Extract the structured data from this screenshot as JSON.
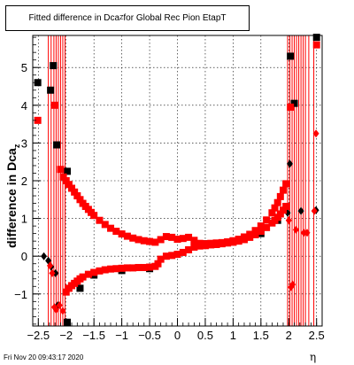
{
  "title_main": "Fitted difference in Dca",
  "title_sub": "Z",
  "title_rest": " for Global Rec Pion EtapT",
  "ylabel_main": "difference in Dca",
  "ylabel_sub": "z",
  "xlabel": "η",
  "footer": "Fri Nov 20 09:43:17 2020",
  "colors": {
    "red": "#ff0000",
    "black": "#000000",
    "grid": "#000000"
  },
  "chart_data": {
    "type": "scatter",
    "xlim": [
      -2.6,
      2.6
    ],
    "ylim": [
      -1.85,
      5.85
    ],
    "xticks": [
      -2.5,
      -2,
      -1.5,
      -1,
      -0.5,
      0,
      0.5,
      1,
      1.5,
      2,
      2.5
    ],
    "xtick_labels": [
      "−2.5",
      "−2",
      "−1.5",
      "−1",
      "−0.5",
      "0",
      "0.5",
      "1",
      "1.5",
      "2",
      "2.5"
    ],
    "yticks": [
      -1,
      0,
      1,
      2,
      3,
      4,
      5
    ],
    "ytick_labels": [
      "−1",
      "0",
      "1",
      "2",
      "3",
      "4",
      "5"
    ],
    "grid": true,
    "red_vlines_x": [
      -2.32,
      -2.27,
      -2.22,
      -2.18,
      -2.14,
      -2.1,
      -2.06,
      -2.02,
      1.98,
      2.02,
      2.06,
      2.1,
      2.14,
      2.18,
      2.22,
      2.26,
      2.3,
      2.36,
      2.45
    ],
    "series": [
      {
        "marker": "square",
        "color": "#000000",
        "points": [
          [
            -2.51,
            4.6
          ],
          [
            -2.28,
            4.4
          ],
          [
            -2.23,
            5.05
          ],
          [
            -2.17,
            2.95
          ],
          [
            -1.98,
            2.25
          ],
          [
            -1.98,
            -1.75
          ],
          [
            -1.75,
            -0.85
          ],
          [
            -1.5,
            -0.5
          ],
          [
            -1.0,
            -0.38
          ],
          [
            -0.5,
            -0.33
          ],
          [
            0.5,
            0.33
          ],
          [
            1.0,
            0.4
          ],
          [
            1.5,
            0.6
          ],
          [
            1.8,
            0.95
          ],
          [
            2.03,
            5.3
          ],
          [
            2.1,
            4.05
          ],
          [
            2.5,
            5.8
          ]
        ]
      },
      {
        "marker": "diamond",
        "color": "#000000",
        "points": [
          [
            -2.4,
            0.0
          ],
          [
            -2.32,
            -0.12
          ],
          [
            -2.27,
            -0.28
          ],
          [
            -2.19,
            -0.45
          ],
          [
            -2.15,
            -1.3
          ],
          [
            1.98,
            1.15
          ],
          [
            2.02,
            2.45
          ],
          [
            2.22,
            1.2
          ],
          [
            2.49,
            1.22
          ]
        ]
      },
      {
        "marker": "square",
        "color": "#ff0000",
        "points": [
          [
            -2.51,
            3.6
          ],
          [
            -2.21,
            4.0
          ],
          [
            -2.1,
            2.3
          ],
          [
            -2.05,
            2.1
          ],
          [
            -2.0,
            2.0
          ],
          [
            -1.95,
            1.9
          ],
          [
            -1.9,
            1.8
          ],
          [
            -1.85,
            1.7
          ],
          [
            -1.8,
            1.6
          ],
          [
            -1.75,
            1.5
          ],
          [
            -1.7,
            1.4
          ],
          [
            -1.65,
            1.32
          ],
          [
            -1.6,
            1.24
          ],
          [
            -1.55,
            1.16
          ],
          [
            -1.5,
            1.08
          ],
          [
            -1.4,
            0.95
          ],
          [
            -1.3,
            0.84
          ],
          [
            -1.2,
            0.74
          ],
          [
            -1.1,
            0.66
          ],
          [
            -1.0,
            0.59
          ],
          [
            -0.9,
            0.53
          ],
          [
            -0.8,
            0.48
          ],
          [
            -0.7,
            0.44
          ],
          [
            -0.6,
            0.41
          ],
          [
            -0.5,
            0.39
          ],
          [
            -0.4,
            0.37
          ],
          [
            -0.3,
            0.44
          ],
          [
            -0.2,
            0.52
          ],
          [
            -0.1,
            0.5
          ],
          [
            0.0,
            0.45
          ],
          [
            0.1,
            0.47
          ],
          [
            0.2,
            0.5
          ],
          [
            0.3,
            0.42
          ],
          [
            0.4,
            0.34
          ],
          [
            0.5,
            0.33
          ],
          [
            0.6,
            0.34
          ],
          [
            0.7,
            0.35
          ],
          [
            0.8,
            0.36
          ],
          [
            0.9,
            0.38
          ],
          [
            1.0,
            0.41
          ],
          [
            1.1,
            0.45
          ],
          [
            1.2,
            0.51
          ],
          [
            1.3,
            0.58
          ],
          [
            1.4,
            0.68
          ],
          [
            1.5,
            0.8
          ],
          [
            1.6,
            0.96
          ],
          [
            1.7,
            1.15
          ],
          [
            1.75,
            1.28
          ],
          [
            1.8,
            1.42
          ],
          [
            1.85,
            1.58
          ],
          [
            1.9,
            1.75
          ],
          [
            1.95,
            1.92
          ],
          [
            2.03,
            3.95
          ],
          [
            2.5,
            5.6
          ],
          [
            -2.0,
            -0.95
          ],
          [
            -1.95,
            -0.85
          ],
          [
            -1.9,
            -0.78
          ],
          [
            -1.85,
            -0.72
          ],
          [
            -1.8,
            -0.66
          ],
          [
            -1.75,
            -0.6
          ],
          [
            -1.7,
            -0.55
          ],
          [
            -1.6,
            -0.48
          ],
          [
            -1.5,
            -0.43
          ],
          [
            -1.4,
            -0.39
          ],
          [
            -1.3,
            -0.36
          ],
          [
            -1.2,
            -0.34
          ],
          [
            -1.1,
            -0.33
          ],
          [
            -1.0,
            -0.32
          ],
          [
            -0.9,
            -0.31
          ],
          [
            -0.8,
            -0.31
          ],
          [
            -0.7,
            -0.3
          ],
          [
            -0.6,
            -0.3
          ],
          [
            -0.5,
            -0.29
          ],
          [
            -0.4,
            -0.27
          ],
          [
            -0.35,
            -0.2
          ],
          [
            -0.3,
            -0.08
          ],
          [
            -0.2,
            0.0
          ],
          [
            -0.1,
            0.02
          ],
          [
            0.0,
            0.05
          ],
          [
            0.1,
            0.1
          ],
          [
            0.2,
            0.17
          ],
          [
            0.3,
            0.24
          ],
          [
            0.4,
            0.27
          ],
          [
            0.5,
            0.28
          ],
          [
            0.6,
            0.3
          ],
          [
            0.7,
            0.31
          ],
          [
            0.8,
            0.33
          ],
          [
            0.9,
            0.35
          ],
          [
            1.0,
            0.37
          ],
          [
            1.1,
            0.4
          ],
          [
            1.2,
            0.44
          ],
          [
            1.3,
            0.5
          ],
          [
            1.4,
            0.57
          ],
          [
            1.5,
            0.66
          ],
          [
            1.6,
            0.76
          ],
          [
            1.7,
            0.88
          ],
          [
            1.75,
            0.95
          ],
          [
            1.8,
            1.03
          ],
          [
            1.85,
            1.12
          ],
          [
            1.9,
            1.22
          ],
          [
            1.95,
            1.32
          ]
        ]
      },
      {
        "marker": "diamond",
        "color": "#ff0000",
        "points": [
          [
            -2.29,
            -0.25
          ],
          [
            -2.25,
            -0.45
          ],
          [
            -2.21,
            -1.35
          ],
          [
            -2.18,
            -1.42
          ],
          [
            -2.12,
            -1.3
          ],
          [
            -2.06,
            -1.45
          ],
          [
            2.0,
            0.95
          ],
          [
            2.04,
            -0.82
          ],
          [
            2.07,
            -0.75
          ],
          [
            2.13,
            0.7
          ],
          [
            2.27,
            0.62
          ],
          [
            2.33,
            0.62
          ],
          [
            2.49,
            3.25
          ],
          [
            2.46,
            1.2
          ]
        ]
      }
    ]
  }
}
